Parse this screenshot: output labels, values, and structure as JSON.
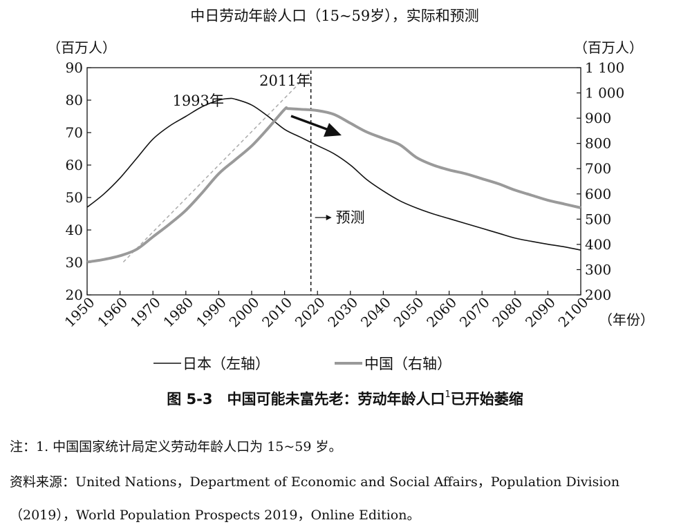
{
  "chart_data": {
    "type": "line",
    "title": "中日劳动年龄人口（15~59岁），实际和预测",
    "left_axis_unit": "（百万人）",
    "right_axis_unit": "（百万人）",
    "x_axis_unit": "（年份）",
    "x_ticks": [
      "1950",
      "1960",
      "1970",
      "1980",
      "1990",
      "2000",
      "2010",
      "2020",
      "2030",
      "2040",
      "2050",
      "2060",
      "2070",
      "2080",
      "2090",
      "2100"
    ],
    "xlim": [
      1950,
      2100
    ],
    "left_ylim": [
      20,
      90
    ],
    "left_ticks": [
      "20",
      "30",
      "40",
      "50",
      "60",
      "70",
      "80",
      "90"
    ],
    "right_ylim": [
      200,
      1100
    ],
    "right_ticks": [
      "200",
      "300",
      "400",
      "500",
      "600",
      "700",
      "800",
      "900",
      "1 000",
      "1 100"
    ],
    "grid": false,
    "legend_placement": "bottom",
    "series": [
      {
        "name": "日本（左轴）",
        "axis": "left",
        "color": "#111111",
        "x": [
          1950,
          1955,
          1960,
          1965,
          1970,
          1975,
          1980,
          1985,
          1990,
          1993,
          1995,
          2000,
          2005,
          2010,
          2015,
          2020,
          2025,
          2030,
          2035,
          2040,
          2045,
          2050,
          2055,
          2060,
          2065,
          2070,
          2075,
          2080,
          2085,
          2090,
          2095,
          2100
        ],
        "values": [
          47,
          51,
          56,
          62,
          68,
          72,
          75,
          78,
          80,
          80.5,
          80.3,
          78.5,
          75,
          71,
          68.5,
          66,
          63.5,
          60,
          55.5,
          52,
          49,
          46.8,
          45,
          43.5,
          42,
          40.5,
          39,
          37.5,
          36.5,
          35.6,
          34.8,
          33.8
        ]
      },
      {
        "name": "中国（右轴）",
        "axis": "right",
        "color": "#9a9a9a",
        "x": [
          1950,
          1955,
          1960,
          1965,
          1970,
          1975,
          1980,
          1985,
          1990,
          1995,
          2000,
          2005,
          2010,
          2011,
          2015,
          2020,
          2025,
          2030,
          2035,
          2040,
          2045,
          2050,
          2055,
          2060,
          2065,
          2070,
          2075,
          2080,
          2085,
          2090,
          2095,
          2100
        ],
        "values": [
          330,
          340,
          355,
          380,
          430,
          480,
          535,
          605,
          680,
          735,
          790,
          860,
          935,
          938,
          935,
          930,
          915,
          880,
          845,
          820,
          795,
          745,
          715,
          695,
          680,
          660,
          640,
          615,
          595,
          575,
          560,
          545
        ]
      }
    ],
    "trend_line": {
      "x": [
        1961,
        2018
      ],
      "values_right_axis": [
        330,
        1085
      ]
    },
    "annotations": [
      {
        "text": "1993年",
        "x": 1993
      },
      {
        "text": "2011年",
        "x": 2011
      },
      {
        "text": "预测",
        "x": 2018
      }
    ],
    "forecast_start_year": 2018
  },
  "legend": {
    "japan": "日本（左轴）",
    "china": "中国（右轴）"
  },
  "caption": {
    "text": "图 5-3　中国可能未富先老：劳动年龄人口",
    "footnote_mark": "1",
    "suffix": "已开始萎缩"
  },
  "notes": {
    "note": "注：1. 中国国家统计局定义劳动年龄人口为 15~59 岁。",
    "source_line1": "资料来源：United Nations，Department of Economic and Social Affairs，Population Division",
    "source_line2": "（2019），World Population Prospects 2019，Online Edition。"
  }
}
